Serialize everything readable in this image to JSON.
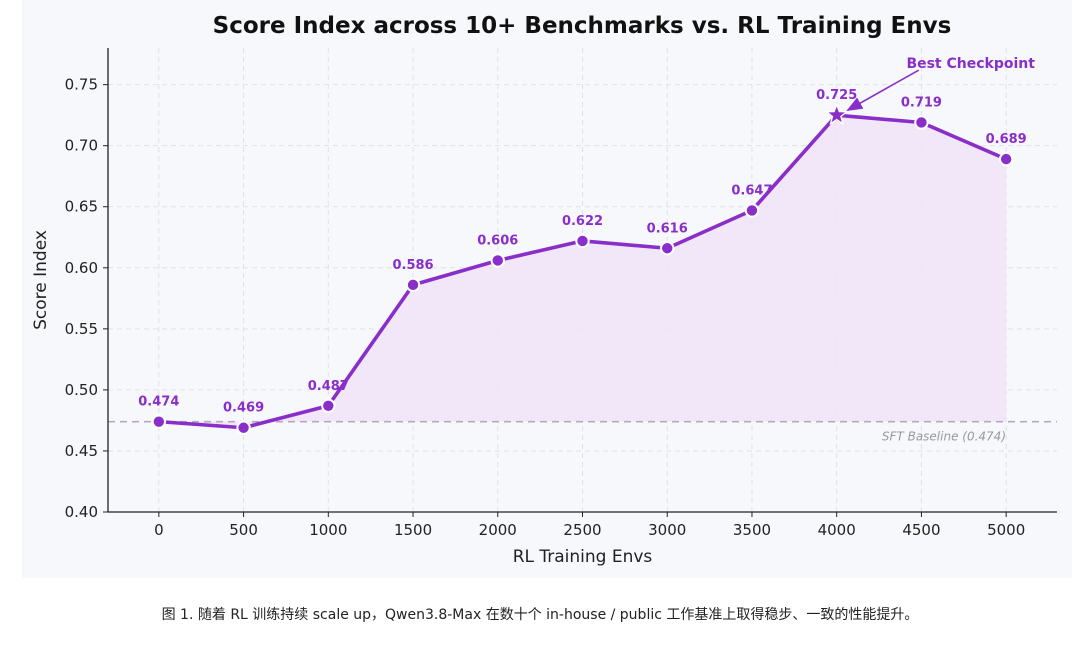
{
  "chart_data": {
    "type": "line",
    "title": "Score Index across 10+ Benchmarks vs. RL Training Envs",
    "xlabel": "RL Training Envs",
    "ylabel": "Score Index",
    "x": [
      0,
      500,
      1000,
      1500,
      2000,
      2500,
      3000,
      3500,
      4000,
      4500,
      5000
    ],
    "y": [
      0.474,
      0.469,
      0.487,
      0.586,
      0.606,
      0.622,
      0.616,
      0.647,
      0.725,
      0.719,
      0.689
    ],
    "point_labels": [
      "0.474",
      "0.469",
      "0.487",
      "0.586",
      "0.606",
      "0.622",
      "0.616",
      "0.647",
      "0.725",
      "0.719",
      "0.689"
    ],
    "xticks": [
      "0",
      "500",
      "1000",
      "1500",
      "2000",
      "2500",
      "3000",
      "3500",
      "4000",
      "4500",
      "5000"
    ],
    "yticks": [
      "0.40",
      "0.45",
      "0.50",
      "0.55",
      "0.60",
      "0.65",
      "0.70",
      "0.75"
    ],
    "xlim": [
      -300,
      5300
    ],
    "ylim": [
      0.4,
      0.78
    ],
    "grid": true,
    "baseline": {
      "value": 0.474,
      "label": "SFT Baseline (0.474)"
    },
    "annotation": {
      "text": "Best Checkpoint",
      "x": 4000,
      "y": 0.725
    },
    "colors": {
      "line": "#8a2ec9",
      "fill": "#f1e4f8",
      "baseline": "#b7a7bf",
      "text": "#8a2ec9"
    }
  },
  "caption": "图 1. 随着 RL 训练持续 scale up，Qwen3.8-Max 在数十个 in-house / public 工作基准上取得稳步、一致的性能提升。"
}
